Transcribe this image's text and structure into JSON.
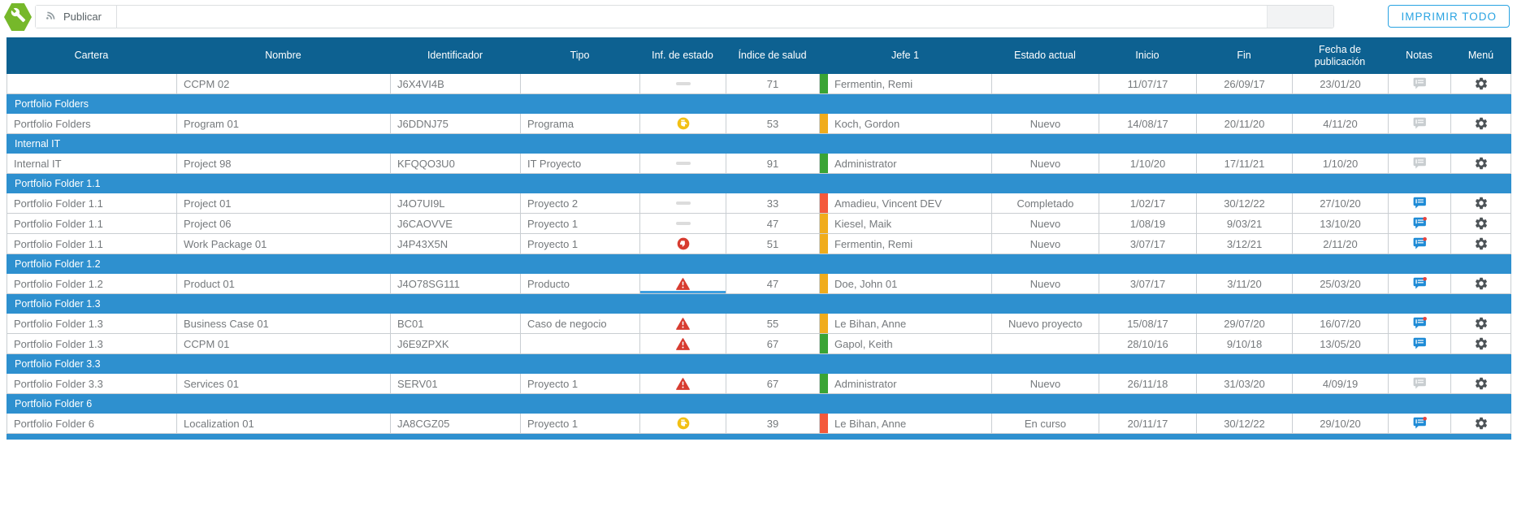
{
  "toolbar": {
    "publish_label": "Publicar",
    "print_all_label": "IMPRIMIR TODO"
  },
  "table": {
    "columns": [
      {
        "label": "Cartera",
        "slug": "cartera"
      },
      {
        "label": "Nombre",
        "slug": "nombre"
      },
      {
        "label": "Identificador",
        "slug": "identificador"
      },
      {
        "label": "Tipo",
        "slug": "tipo"
      },
      {
        "label": "Inf. de estado",
        "slug": "inf-de-estado"
      },
      {
        "label": "Índice de salud",
        "slug": "indice-de-salud"
      },
      {
        "label": "Jefe 1",
        "slug": "jefe-1"
      },
      {
        "label": "Estado actual",
        "slug": "estado-actual"
      },
      {
        "label": "Inicio",
        "slug": "inicio"
      },
      {
        "label": "Fin",
        "slug": "fin"
      },
      {
        "label": "Fecha de publicación",
        "slug": "fecha-de-publicacion"
      },
      {
        "label": "Notas",
        "slug": "notas"
      },
      {
        "label": "Menú",
        "slug": "menu"
      }
    ],
    "rows": [
      {
        "type": "data",
        "cartera": "",
        "nombre": "CCPM 02",
        "identificador": "J6X4VI4B",
        "tipo": "",
        "status_icon": "dash-icon",
        "salud": "71",
        "salud_color": "green",
        "jefe": "Fermentin, Remi",
        "estado": "",
        "inicio": "11/07/17",
        "fin": "26/09/17",
        "publicacion": "23/01/20",
        "note_icon": "note-gray-icon",
        "menu_icon": "gear-icon",
        "selected": false
      },
      {
        "type": "group",
        "label": "Portfolio Folders"
      },
      {
        "type": "data",
        "cartera": "Portfolio Folders",
        "nombre": "Program 01",
        "identificador": "J6DDNJ75",
        "tipo": "Programa",
        "status_icon": "thumb-sideways-icon",
        "salud": "53",
        "salud_color": "orange",
        "jefe": "Koch, Gordon",
        "estado": "Nuevo",
        "inicio": "14/08/17",
        "fin": "20/11/20",
        "publicacion": "4/11/20",
        "note_icon": "note-gray-icon",
        "menu_icon": "gear-icon",
        "selected": false
      },
      {
        "type": "group",
        "label": "Internal IT"
      },
      {
        "type": "data",
        "cartera": "Internal IT",
        "nombre": "Project 98",
        "identificador": "KFQQO3U0",
        "tipo": "IT Proyecto",
        "status_icon": "dash-icon",
        "salud": "91",
        "salud_color": "green",
        "jefe": "Administrator",
        "estado": "Nuevo",
        "inicio": "1/10/20",
        "fin": "17/11/21",
        "publicacion": "1/10/20",
        "note_icon": "note-gray-icon",
        "menu_icon": "gear-icon",
        "selected": false
      },
      {
        "type": "group",
        "label": "Portfolio Folder 1.1"
      },
      {
        "type": "data",
        "cartera": "Portfolio Folder 1.1",
        "nombre": "Project 01",
        "identificador": "J4O7UI9L",
        "tipo": "Proyecto 2",
        "status_icon": "dash-icon",
        "salud": "33",
        "salud_color": "red",
        "jefe": "Amadieu, Vincent DEV",
        "estado": "Completado",
        "inicio": "1/02/17",
        "fin": "30/12/22",
        "publicacion": "27/10/20",
        "note_icon": "note-blue-icon",
        "menu_icon": "gear-icon",
        "selected": false
      },
      {
        "type": "data",
        "cartera": "Portfolio Folder 1.1",
        "nombre": "Project 06",
        "identificador": "J6CAOVVE",
        "tipo": "Proyecto 1",
        "status_icon": "dash-icon",
        "salud": "47",
        "salud_color": "orange",
        "jefe": "Kiesel, Maik",
        "estado": "Nuevo",
        "inicio": "1/08/19",
        "fin": "9/03/21",
        "publicacion": "13/10/20",
        "note_icon": "note-blue-unread-icon",
        "menu_icon": "gear-icon",
        "selected": false
      },
      {
        "type": "data",
        "cartera": "Portfolio Folder 1.1",
        "nombre": "Work Package 01",
        "identificador": "J4P43X5N",
        "tipo": "Proyecto 1",
        "status_icon": "thumb-down-icon",
        "salud": "51",
        "salud_color": "orange",
        "jefe": "Fermentin, Remi",
        "estado": "Nuevo",
        "inicio": "3/07/17",
        "fin": "3/12/21",
        "publicacion": "2/11/20",
        "note_icon": "note-blue-unread-icon",
        "menu_icon": "gear-icon",
        "selected": false
      },
      {
        "type": "group",
        "label": "Portfolio Folder 1.2"
      },
      {
        "type": "data",
        "cartera": "Portfolio Folder 1.2",
        "nombre": "Product 01",
        "identificador": "J4O78SG111",
        "tipo": "Producto",
        "status_icon": "alert-triangle-icon",
        "salud": "47",
        "salud_color": "orange",
        "jefe": "Doe, John 01",
        "estado": "Nuevo",
        "inicio": "3/07/17",
        "fin": "3/11/20",
        "publicacion": "25/03/20",
        "note_icon": "note-blue-unread-icon",
        "menu_icon": "gear-icon",
        "selected": true
      },
      {
        "type": "group",
        "label": "Portfolio Folder 1.3"
      },
      {
        "type": "data",
        "cartera": "Portfolio Folder 1.3",
        "nombre": "Business Case 01",
        "identificador": "BC01",
        "tipo": "Caso de negocio",
        "status_icon": "alert-triangle-icon",
        "salud": "55",
        "salud_color": "orange",
        "jefe": "Le Bihan, Anne",
        "estado": "Nuevo proyecto",
        "inicio": "15/08/17",
        "fin": "29/07/20",
        "publicacion": "16/07/20",
        "note_icon": "note-blue-unread-icon",
        "menu_icon": "gear-icon",
        "selected": false
      },
      {
        "type": "data",
        "cartera": "Portfolio Folder 1.3",
        "nombre": "CCPM 01",
        "identificador": "J6E9ZPXK",
        "tipo": "",
        "status_icon": "alert-triangle-icon",
        "salud": "67",
        "salud_color": "green",
        "jefe": "Gapol, Keith",
        "estado": "",
        "inicio": "28/10/16",
        "fin": "9/10/18",
        "publicacion": "13/05/20",
        "note_icon": "note-blue-icon",
        "menu_icon": "gear-icon",
        "selected": false
      },
      {
        "type": "group",
        "label": "Portfolio Folder 3.3"
      },
      {
        "type": "data",
        "cartera": "Portfolio Folder 3.3",
        "nombre": "Services 01",
        "identificador": "SERV01",
        "tipo": "Proyecto 1",
        "status_icon": "alert-triangle-icon",
        "salud": "67",
        "salud_color": "green",
        "jefe": "Administrator",
        "estado": "Nuevo",
        "inicio": "26/11/18",
        "fin": "31/03/20",
        "publicacion": "4/09/19",
        "note_icon": "note-gray-icon",
        "menu_icon": "gear-icon",
        "selected": false
      },
      {
        "type": "group",
        "label": "Portfolio Folder 6"
      },
      {
        "type": "data",
        "cartera": "Portfolio Folder 6",
        "nombre": "Localization 01",
        "identificador": "JA8CGZ05",
        "tipo": "Proyecto 1",
        "status_icon": "thumb-sideways-icon",
        "salud": "39",
        "salud_color": "red",
        "jefe": "Le Bihan, Anne",
        "estado": "En curso",
        "inicio": "20/11/17",
        "fin": "30/12/22",
        "publicacion": "29/10/20",
        "note_icon": "note-blue-unread-icon",
        "menu_icon": "gear-icon",
        "selected": false
      }
    ]
  },
  "colors": {
    "header_bg": "#0d6191",
    "group_bg": "#2e90cf",
    "accent_blue": "#29a3e2",
    "health_green": "#3aa435",
    "health_orange": "#f0ac1c",
    "health_red": "#f4593b",
    "note_blue": "#1e8bd6",
    "note_gray": "#c8cdd0",
    "alert_red": "#d73c30",
    "status_yellow": "#f2c014",
    "app_green": "#76b82a"
  }
}
